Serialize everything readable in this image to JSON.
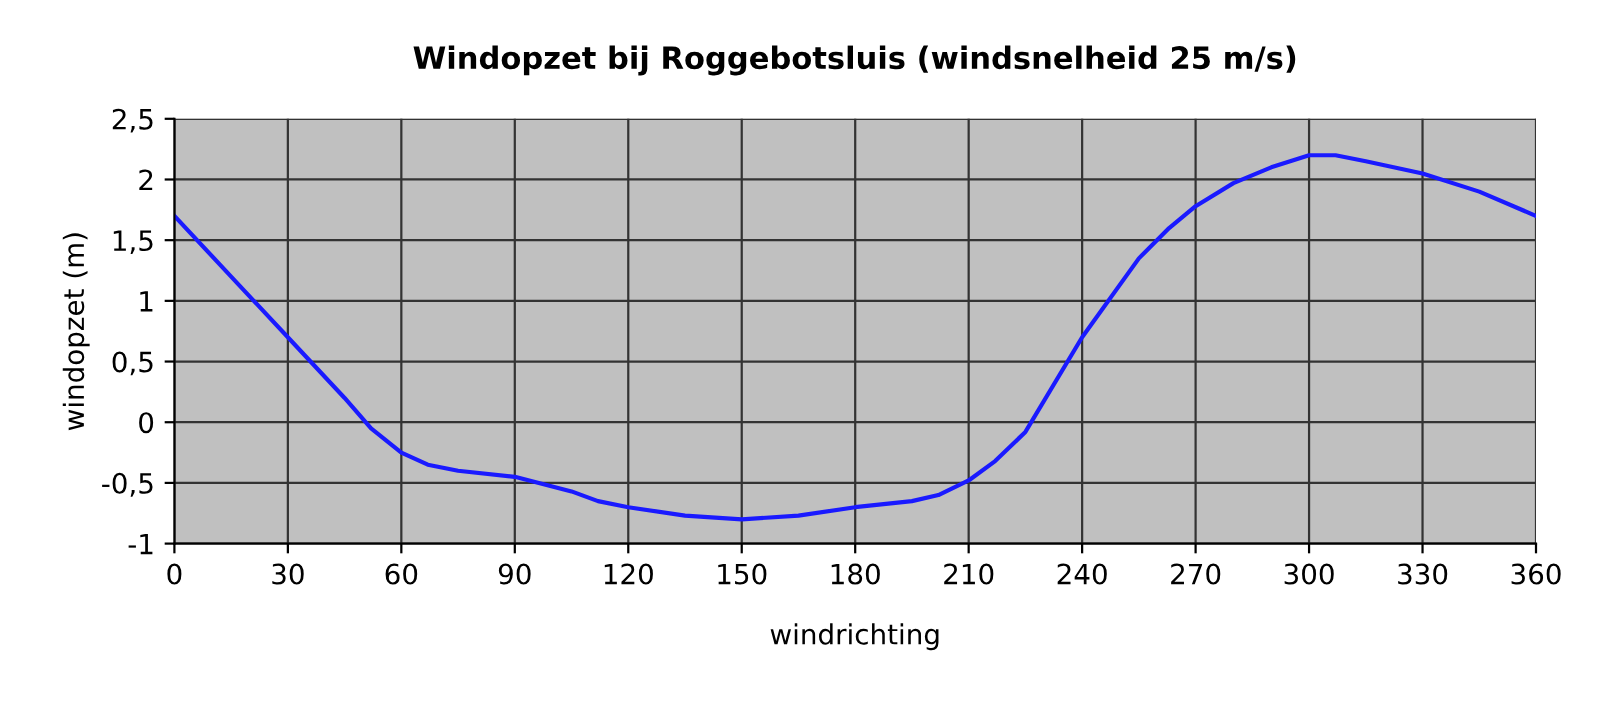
{
  "chart_data": {
    "type": "line",
    "title": "Windopzet bij Roggebotsluis (windsnelheid 25 m/s)",
    "xlabel": "windrichting",
    "ylabel": "windopzet (m)",
    "series": [
      {
        "color": "#1a1aff",
        "x": [
          0,
          15,
          30,
          45,
          52,
          60,
          67,
          75,
          90,
          105,
          112,
          120,
          135,
          150,
          165,
          180,
          195,
          202,
          210,
          217,
          225,
          240,
          255,
          263,
          270,
          280,
          290,
          300,
          307,
          315,
          330,
          345,
          360
        ],
        "values": [
          1.7,
          1.2,
          0.7,
          0.2,
          -0.05,
          -0.25,
          -0.35,
          -0.4,
          -0.45,
          -0.57,
          -0.65,
          -0.7,
          -0.77,
          -0.8,
          -0.77,
          -0.7,
          -0.65,
          -0.6,
          -0.48,
          -0.32,
          -0.08,
          0.7,
          1.35,
          1.6,
          1.78,
          1.97,
          2.1,
          2.2,
          2.2,
          2.15,
          2.05,
          1.9,
          1.7
        ]
      }
    ],
    "xlim": [
      0,
      360
    ],
    "xticks": [
      0,
      30,
      60,
      90,
      120,
      150,
      180,
      210,
      240,
      270,
      300,
      330,
      360
    ],
    "ylim": [
      -1,
      2.5
    ],
    "yticks": [
      {
        "value": -1,
        "label": "-1"
      },
      {
        "value": -0.5,
        "label": "-0,5"
      },
      {
        "value": 0,
        "label": "0"
      },
      {
        "value": 0.5,
        "label": "0,5"
      },
      {
        "value": 1,
        "label": "1"
      },
      {
        "value": 1.5,
        "label": "1,5"
      },
      {
        "value": 2,
        "label": "2"
      },
      {
        "value": 2.5,
        "label": "2,5"
      }
    ],
    "grid": true,
    "marker": "none",
    "line_style": "solid",
    "legend": false
  }
}
